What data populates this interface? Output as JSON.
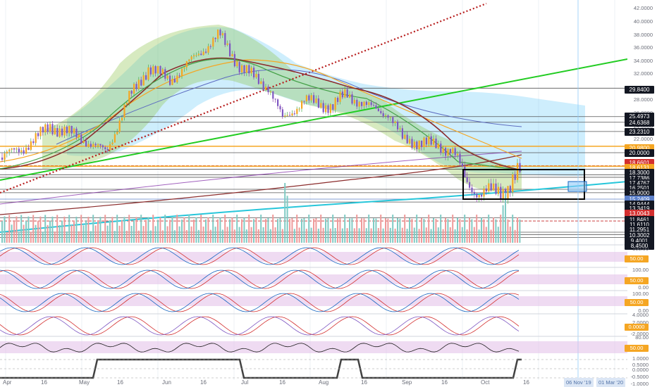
{
  "chart_data": {
    "type": "candlestick",
    "price_axis_ticks": [
      "42.0000",
      "40.0000",
      "38.0000",
      "36.0000",
      "34.0000",
      "32.0000",
      "28.0000",
      "26.0000",
      "24.0000",
      "22.0000",
      "18.0000"
    ],
    "price_labels": [
      {
        "text": "29.8400",
        "price": 29.84,
        "bg": "#131722",
        "fg": "#ffffff"
      },
      {
        "text": "25.4973",
        "price": 25.5,
        "bg": "#131722",
        "fg": "#ffffff"
      },
      {
        "text": "24.6368",
        "price": 24.64,
        "bg": "#131722",
        "fg": "#ffffff"
      },
      {
        "text": "23.2310",
        "price": 23.23,
        "bg": "#131722",
        "fg": "#ffffff"
      },
      {
        "text": "20.9800",
        "price": 20.98,
        "bg": "#f5a623",
        "fg": "#ffffff"
      },
      {
        "text": "20.0000",
        "price": 20.0,
        "bg": "#131722",
        "fg": "#ffffff"
      },
      {
        "text": "18.6601",
        "price": 18.66,
        "bg": "#d32f2f",
        "fg": "#ffffff"
      },
      {
        "text": "18.6131",
        "price": 18.61,
        "bg": "#f5a623",
        "fg": "#ffffff"
      },
      {
        "text": "18.3000",
        "price": 18.3,
        "bg": "#131722",
        "fg": "#ffffff"
      },
      {
        "text": "17.7386",
        "price": 17.74,
        "bg": "#131722",
        "fg": "#ffffff"
      },
      {
        "text": "17.4767",
        "price": 17.48,
        "bg": "#131722",
        "fg": "#ffffff"
      },
      {
        "text": "16.2501",
        "price": 16.25,
        "bg": "#131722",
        "fg": "#ffffff"
      },
      {
        "text": "15.9000",
        "price": 15.9,
        "bg": "#131722",
        "fg": "#ffffff"
      },
      {
        "text": "15.2409",
        "price": 15.24,
        "bg": "#5b7fc9",
        "fg": "#ffffff"
      },
      {
        "text": "14.9444",
        "price": 14.94,
        "bg": "#131722",
        "fg": "#ffffff"
      },
      {
        "text": "13.3419",
        "price": 13.34,
        "bg": "#131722",
        "fg": "#ffffff"
      },
      {
        "text": "13.0043",
        "price": 13.0,
        "bg": "#d32f2f",
        "fg": "#ffffff"
      },
      {
        "text": "11.8461",
        "price": 11.85,
        "bg": "#131722",
        "fg": "#ffffff"
      },
      {
        "text": "11.6110",
        "price": 11.61,
        "bg": "#131722",
        "fg": "#ffffff"
      },
      {
        "text": "11.2951",
        "price": 11.3,
        "bg": "#131722",
        "fg": "#ffffff"
      },
      {
        "text": "10.3002",
        "price": 10.3,
        "bg": "#131722",
        "fg": "#ffffff"
      },
      {
        "text": "9.4001",
        "price": 9.4,
        "bg": "#131722",
        "fg": "#ffffff"
      },
      {
        "text": "8.4500",
        "price": 8.45,
        "bg": "#131722",
        "fg": "#ffffff"
      }
    ],
    "x_ticks": [
      "Apr",
      "16",
      "May",
      "16",
      "Jun",
      "16",
      "Jul",
      "16",
      "Aug",
      "16",
      "Sep",
      "16",
      "Oct",
      "16"
    ],
    "date_badges": [
      "06 Nov '19",
      "01 Mar '20"
    ],
    "indicators": [
      {
        "name": "stoch1",
        "ticks": [
          "100.00"
        ],
        "level_label": "50.00"
      },
      {
        "name": "stoch2",
        "ticks": [
          "100.00",
          "0.00"
        ],
        "level_label": "50.00"
      },
      {
        "name": "stoch3",
        "ticks": [
          "100.00",
          "0.00"
        ],
        "level_label": "50.00"
      },
      {
        "name": "macd",
        "ticks": [
          "4.0000",
          "2.0000",
          "-2.0000"
        ],
        "level_label": "0.0000"
      },
      {
        "name": "rsi",
        "ticks": [
          "80.00",
          "40.00"
        ],
        "level_label": "50.00"
      },
      {
        "name": "signal",
        "ticks": [
          "1.0000",
          "0.5000",
          "0.0000",
          "-0.5000",
          "-1.0000"
        ],
        "level_label": ""
      }
    ]
  },
  "colors": {
    "up": "#26a69a",
    "down": "#ef5350",
    "orange": "#f5a623",
    "green_line": "#22cc22",
    "cloud_cyan": "#4fc3f7",
    "band_green": "#8bc34a",
    "pink": "#e1bee7",
    "maroon": "#8b2c2c"
  },
  "icons": {
    "axis_settings": "gear-icon"
  }
}
